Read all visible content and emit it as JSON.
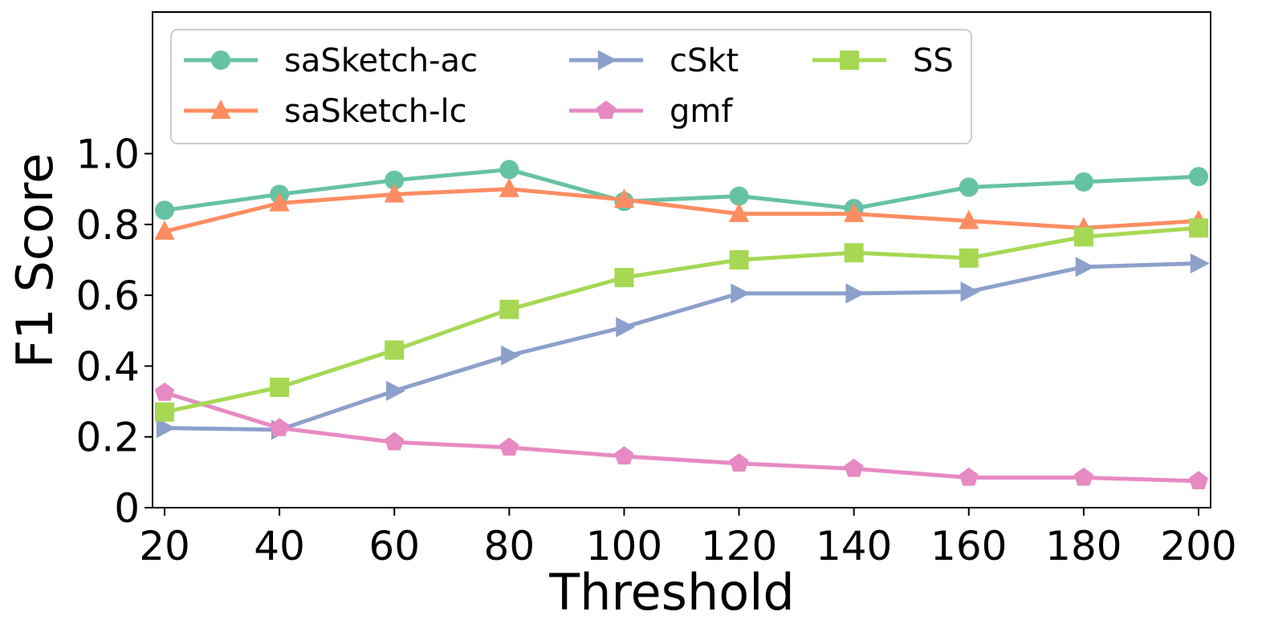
{
  "chart_data": {
    "type": "line",
    "title": "",
    "xlabel": "Threshold",
    "ylabel": "F1 Score",
    "x": [
      20,
      40,
      60,
      80,
      100,
      120,
      140,
      160,
      180,
      200
    ],
    "x_tick_labels": [
      "20",
      "40",
      "60",
      "80",
      "100",
      "120",
      "140",
      "160",
      "180",
      "200"
    ],
    "y_ticks": [
      0,
      0.2,
      0.4,
      0.6,
      0.8,
      1.0
    ],
    "y_tick_labels": [
      "0",
      "0.2",
      "0.4",
      "0.6",
      "0.8",
      "1.0"
    ],
    "xlim": [
      20,
      200
    ],
    "ylim": [
      0,
      1.4
    ],
    "grid": false,
    "legend_position": "top-left",
    "legend_columns": 3,
    "series": [
      {
        "name": "saSketch-ac",
        "color": "#66c2a5",
        "marker": "circle",
        "values": [
          0.84,
          0.885,
          0.925,
          0.955,
          0.865,
          0.88,
          0.845,
          0.905,
          0.92,
          0.935
        ]
      },
      {
        "name": "saSketch-lc",
        "color": "#fc8d62",
        "marker": "triangle-up",
        "values": [
          0.78,
          0.86,
          0.885,
          0.9,
          0.87,
          0.83,
          0.83,
          0.81,
          0.79,
          0.81
        ]
      },
      {
        "name": "cSkt",
        "color": "#8da0cb",
        "marker": "triangle-right",
        "values": [
          0.225,
          0.22,
          0.33,
          0.43,
          0.51,
          0.605,
          0.605,
          0.61,
          0.68,
          0.69
        ]
      },
      {
        "name": "gmf",
        "color": "#e78ac3",
        "marker": "pentagon",
        "values": [
          0.325,
          0.225,
          0.185,
          0.17,
          0.145,
          0.125,
          0.11,
          0.085,
          0.085,
          0.075
        ]
      },
      {
        "name": "SS",
        "color": "#a6d854",
        "marker": "square",
        "values": [
          0.27,
          0.34,
          0.445,
          0.56,
          0.65,
          0.7,
          0.72,
          0.705,
          0.765,
          0.79
        ]
      }
    ]
  }
}
